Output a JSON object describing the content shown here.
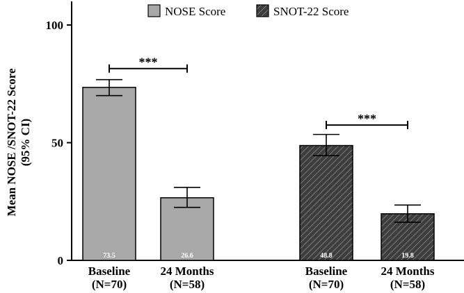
{
  "chart_data": {
    "type": "bar",
    "ylabel_line1": "Mean NOSE /SNOT-22  Score",
    "ylabel_line2": "(95%  CI)",
    "ylim": [
      0,
      110
    ],
    "yticks": [
      0,
      50,
      100
    ],
    "grid": false,
    "legend_position": "top",
    "legend": [
      {
        "name": "NOSE Score",
        "fill": "#a8a8a8",
        "pattern": "solid"
      },
      {
        "name": "SNOT-22  Score",
        "fill": "#3d3d3d",
        "pattern": "diagonal-hatch"
      }
    ],
    "bars": [
      {
        "series": "NOSE Score",
        "label_line1": "Baseline",
        "label_line2": "(N=70)",
        "value": 73.5,
        "value_label": "73.5",
        "ci_low": 70.0,
        "ci_high": 76.8
      },
      {
        "series": "NOSE Score",
        "label_line1": "24 Months",
        "label_line2": "(N=58)",
        "value": 26.6,
        "value_label": "26.6",
        "ci_low": 22.5,
        "ci_high": 31.0
      },
      {
        "series": "SNOT-22  Score",
        "label_line1": "Baseline",
        "label_line2": "(N=70)",
        "value": 48.8,
        "value_label": "48.8",
        "ci_low": 44.5,
        "ci_high": 53.5
      },
      {
        "series": "SNOT-22  Score",
        "label_line1": "24 Months",
        "label_line2": "(N=58)",
        "value": 19.8,
        "value_label": "19.8",
        "ci_low": 16.2,
        "ci_high": 23.5
      }
    ],
    "significance": [
      {
        "from": 0,
        "to": 1,
        "at_value": 81.5,
        "label": "***"
      },
      {
        "from": 2,
        "to": 3,
        "at_value": 57.5,
        "label": "***"
      }
    ]
  }
}
